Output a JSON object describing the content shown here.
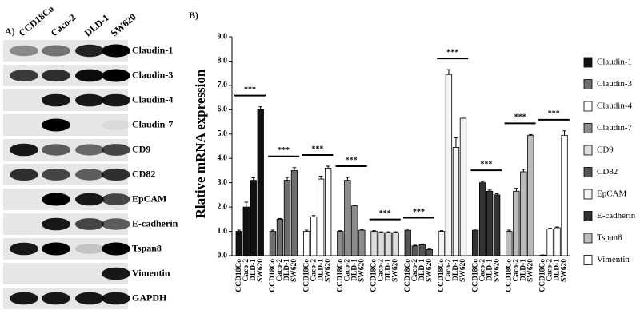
{
  "panels": {
    "a": "A)",
    "b": "B)"
  },
  "blot": {
    "lanes": [
      "CCD18Co",
      "Caco-2",
      "DLD-1",
      "SW620"
    ],
    "rows": [
      "Claudin-1",
      "Claudin-3",
      "Claudin-4",
      "Claudin-7",
      "CD9",
      "CD82",
      "EpCAM",
      "E-cadherin",
      "Tspan8",
      "Vimentin",
      "GAPDH"
    ]
  },
  "chart_data": {
    "type": "grouped-bar",
    "y_label": "Rlative mRNA expression",
    "categories": [
      "Claudin-1",
      "Claudin-3",
      "Claudin-4",
      "Claudin-7",
      "CD9",
      "CD82",
      "EpCAM",
      "E-cadherin",
      "Tspan8",
      "Vimentin"
    ],
    "category_colors": [
      "#111111",
      "#6e6e6e",
      "#ffffff",
      "#8c8c8c",
      "#dcdcdc",
      "#555555",
      "#f4f4f4",
      "#333333",
      "#bbbbbb",
      "#ffffff"
    ],
    "series": [
      {
        "name": "CCD18Co",
        "values": [
          1.0,
          1.0,
          1.0,
          1.0,
          1.0,
          1.05,
          1.0,
          1.05,
          1.0,
          0.02
        ],
        "errors": [
          0.05,
          0.05,
          0.05,
          0.03,
          0.03,
          0.05,
          0.03,
          0.05,
          0.05,
          0.01
        ]
      },
      {
        "name": "Caco-2",
        "values": [
          2.0,
          1.5,
          1.6,
          3.1,
          0.95,
          0.4,
          7.45,
          3.0,
          2.65,
          1.1
        ],
        "errors": [
          0.2,
          0.03,
          0.05,
          0.12,
          0.03,
          0.03,
          0.2,
          0.05,
          0.12,
          0.03
        ]
      },
      {
        "name": "DLD-1",
        "values": [
          3.1,
          3.1,
          3.15,
          2.05,
          0.95,
          0.45,
          4.45,
          2.65,
          3.45,
          1.15
        ],
        "errors": [
          0.1,
          0.12,
          0.12,
          0.03,
          0.03,
          0.03,
          0.4,
          0.05,
          0.1,
          0.03
        ]
      },
      {
        "name": "SW620",
        "values": [
          6.0,
          3.5,
          3.6,
          1.05,
          0.95,
          0.25,
          5.65,
          2.5,
          4.95,
          4.95
        ],
        "errors": [
          0.12,
          0.12,
          0.08,
          0.03,
          0.03,
          0.02,
          0.05,
          0.05,
          0.03,
          0.18
        ]
      }
    ],
    "annotations": [
      "***",
      "***",
      "***",
      "***",
      "***",
      "***",
      "***",
      "***",
      "***",
      "***"
    ],
    "ylim": [
      0,
      9
    ],
    "yticks": [
      {
        "value": 0,
        "label": "0.0"
      },
      {
        "value": 1,
        "label": "1.0"
      },
      {
        "value": 2,
        "label": "2.0"
      },
      {
        "value": 3,
        "label": "3.0"
      },
      {
        "value": 4,
        "label": "4.0"
      },
      {
        "value": 5,
        "label": "5.0"
      },
      {
        "value": 6,
        "label": "6.0"
      },
      {
        "value": 7,
        "label": "7.0"
      },
      {
        "value": 8,
        "label": "8.0"
      },
      {
        "value": 9,
        "label": "9.0"
      }
    ],
    "legend": "right"
  }
}
